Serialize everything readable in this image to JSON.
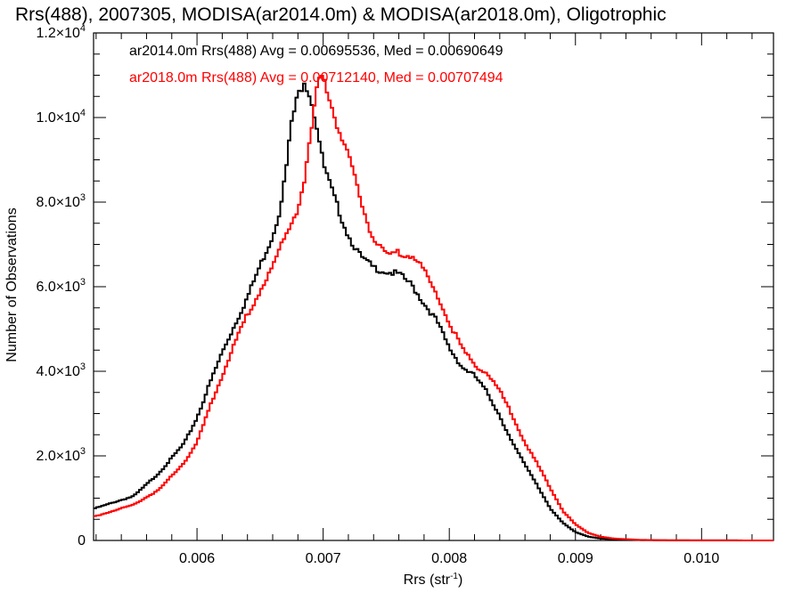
{
  "chart_data": {
    "type": "line",
    "title": "Rrs(488), 2007305, MODISA(ar2014.0m) & MODISA(ar2018.0m), Oligotrophic",
    "xlabel": "Rrs (str",
    "xlabel_sup": "-1",
    "xlabel_end": ")",
    "ylabel": "Number of Observations",
    "xlim": [
      0.00518,
      0.01057
    ],
    "ylim": [
      0,
      12000
    ],
    "x_ticks": [
      {
        "value": 0.006,
        "label": "0.006"
      },
      {
        "value": 0.007,
        "label": "0.007"
      },
      {
        "value": 0.008,
        "label": "0.008"
      },
      {
        "value": 0.009,
        "label": "0.009"
      },
      {
        "value": 0.01,
        "label": "0.010"
      }
    ],
    "y_ticks": [
      {
        "value": 0,
        "mant": "0",
        "exp": ""
      },
      {
        "value": 2000,
        "mant": "2.0×10",
        "exp": "3"
      },
      {
        "value": 4000,
        "mant": "4.0×10",
        "exp": "3"
      },
      {
        "value": 6000,
        "mant": "6.0×10",
        "exp": "3"
      },
      {
        "value": 8000,
        "mant": "8.0×10",
        "exp": "3"
      },
      {
        "value": 10000,
        "mant": "1.0×10",
        "exp": "4"
      },
      {
        "value": 12000,
        "mant": "1.2×10",
        "exp": "4"
      }
    ],
    "annotations": [
      {
        "text": "ar2014.0m Rrs(488) Avg = 0.00695536, Med = 0.00690649",
        "color": "#000000"
      },
      {
        "text": "ar2018.0m Rrs(488) Avg = 0.00712140, Med = 0.00707494",
        "color": "#ff0000"
      }
    ],
    "series": [
      {
        "color": "#000000",
        "x": [
          0.00518,
          0.0055,
          0.0057,
          0.0059,
          0.006,
          0.0061,
          0.0062,
          0.0063,
          0.0064,
          0.0065,
          0.0066,
          0.00665,
          0.0067,
          0.00675,
          0.0068,
          0.00685,
          0.0069,
          0.00695,
          0.007,
          0.0071,
          0.0072,
          0.0073,
          0.0074,
          0.0075,
          0.0076,
          0.0077,
          0.0078,
          0.0079,
          0.008,
          0.0081,
          0.0082,
          0.0083,
          0.0084,
          0.0085,
          0.0086,
          0.0087,
          0.0088,
          0.0089,
          0.009,
          0.0091,
          0.0092,
          0.0093,
          0.0095,
          0.0097,
          0.01057
        ],
        "y": [
          750,
          1050,
          1600,
          2300,
          2900,
          3700,
          4450,
          5100,
          5750,
          6500,
          7200,
          7750,
          8600,
          9900,
          10500,
          10900,
          10500,
          9800,
          8900,
          8000,
          7200,
          6700,
          6450,
          6350,
          6300,
          6050,
          5600,
          5200,
          4550,
          4100,
          3900,
          3500,
          2950,
          2300,
          1800,
          1300,
          750,
          420,
          200,
          90,
          45,
          25,
          10,
          4,
          0
        ]
      },
      {
        "color": "#ff0000",
        "x": [
          0.00518,
          0.0055,
          0.0057,
          0.0059,
          0.006,
          0.0061,
          0.0062,
          0.0063,
          0.0064,
          0.0065,
          0.0066,
          0.0067,
          0.0068,
          0.00685,
          0.0069,
          0.00695,
          0.007,
          0.00705,
          0.0071,
          0.0072,
          0.0073,
          0.0074,
          0.0075,
          0.0076,
          0.0077,
          0.0078,
          0.0079,
          0.008,
          0.0081,
          0.0082,
          0.0083,
          0.0084,
          0.0085,
          0.0086,
          0.0087,
          0.0088,
          0.0089,
          0.009,
          0.0091,
          0.0092,
          0.0093,
          0.0095,
          0.0097,
          0.01057
        ],
        "y": [
          560,
          850,
          1200,
          1850,
          2300,
          3150,
          3900,
          4650,
          5350,
          5900,
          6450,
          7200,
          7850,
          8500,
          9500,
          10700,
          11000,
          10500,
          9900,
          9100,
          8000,
          7100,
          6750,
          6800,
          6750,
          6400,
          5800,
          5150,
          4550,
          4150,
          3950,
          3550,
          2950,
          2300,
          1800,
          1250,
          700,
          380,
          180,
          90,
          45,
          15,
          5,
          0
        ]
      }
    ]
  }
}
